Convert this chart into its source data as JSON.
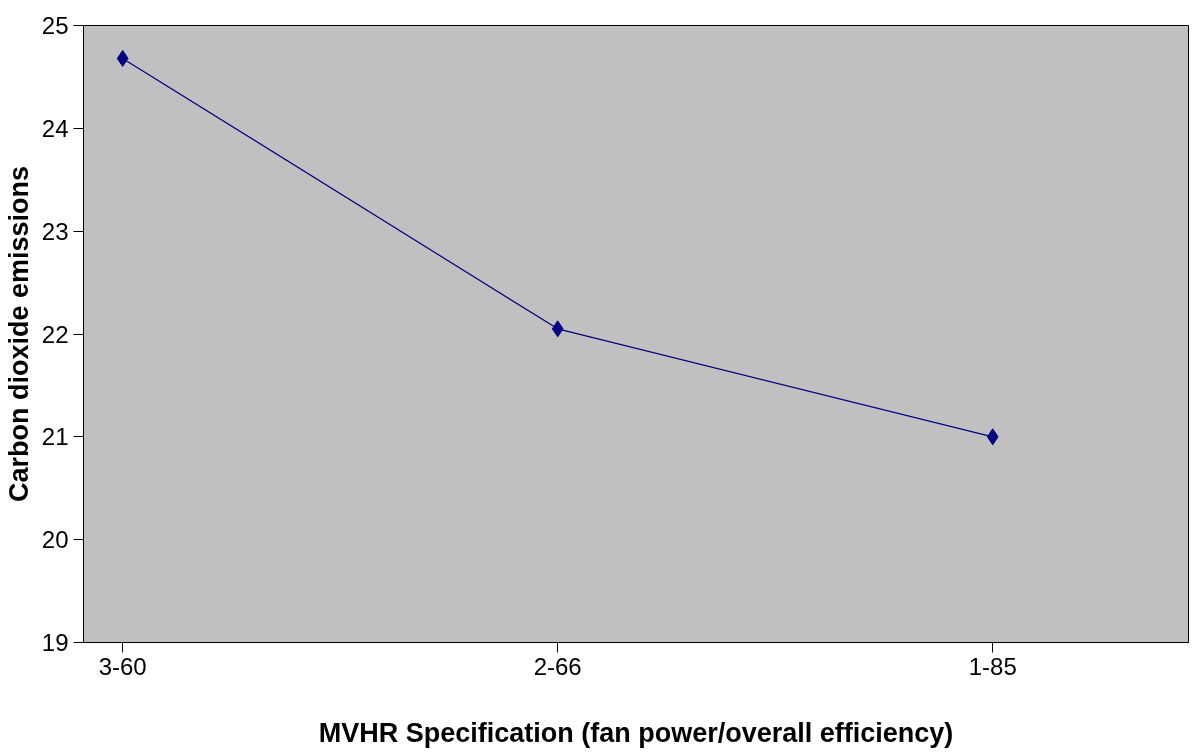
{
  "chart_data": {
    "type": "line",
    "xlabel": "MVHR Specification (fan power/overall efficiency)",
    "ylabel": "Carbon dioxide emissions",
    "categories": [
      "3-60",
      "2-66",
      "1-85"
    ],
    "series": [
      {
        "color": "#000080",
        "values": [
          24.68,
          22.05,
          21.0
        ]
      }
    ],
    "ylim": [
      19,
      25
    ],
    "yticks": [
      19,
      20,
      21,
      22,
      23,
      24,
      25
    ],
    "grid": false,
    "marker": "diamond",
    "line_style": "solid"
  }
}
